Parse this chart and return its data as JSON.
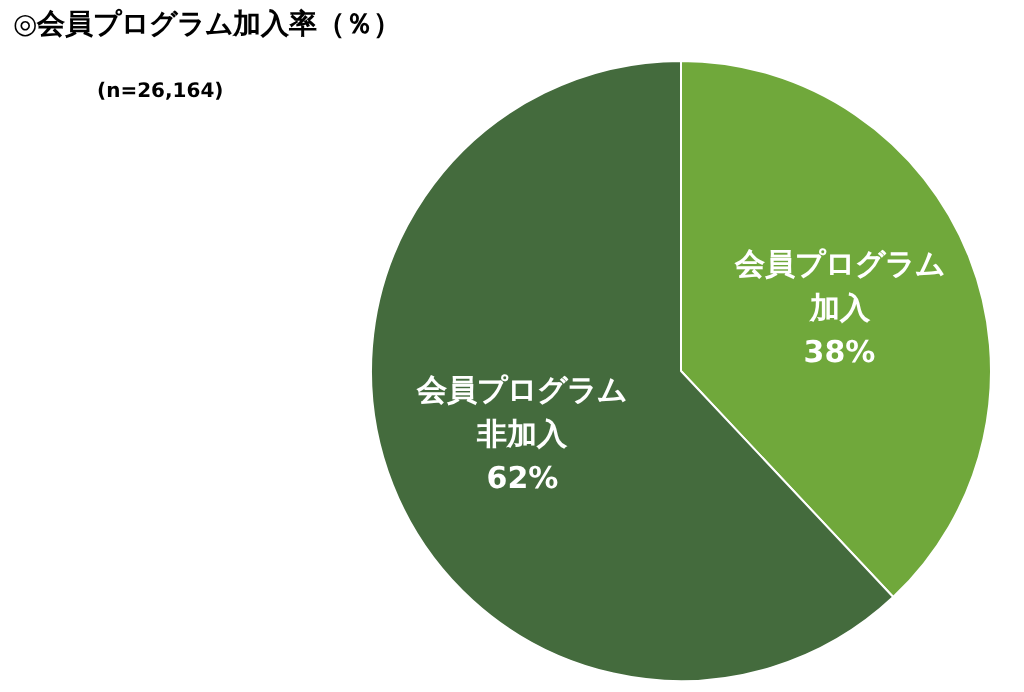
{
  "chart_data": {
    "type": "pie",
    "title": "◎会員プログラム加入率（％）",
    "subtitle": "(n=26,164)",
    "categories": [
      "会員プログラム加入",
      "会員プログラム非加入"
    ],
    "values": [
      38,
      62
    ],
    "colors": [
      "#70a83b",
      "#446b3d"
    ],
    "value_labels": [
      "38%",
      "62%"
    ]
  }
}
